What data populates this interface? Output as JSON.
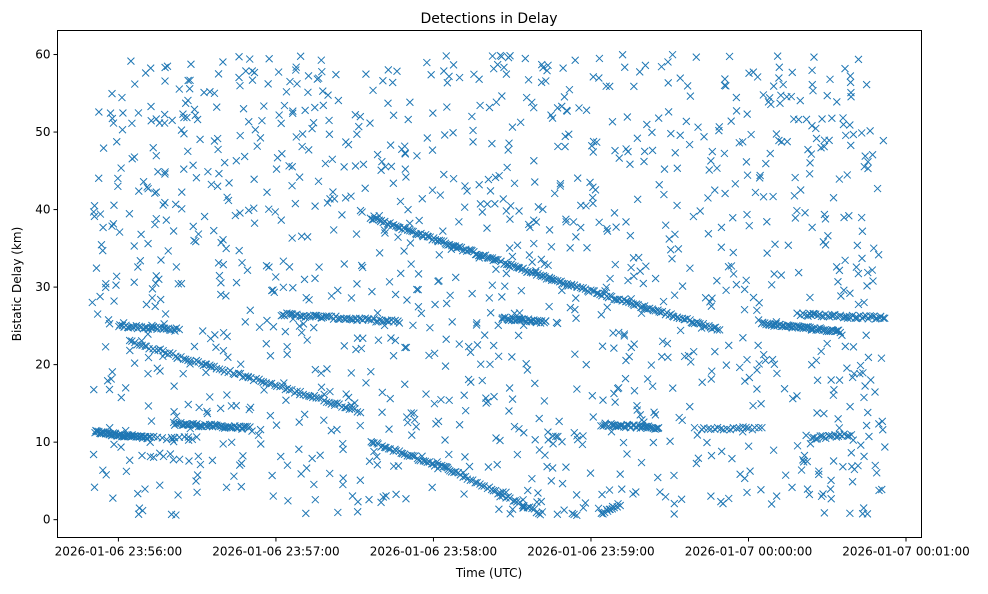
{
  "chart_data": {
    "type": "scatter",
    "title": "Detections in Delay",
    "xlabel": "Time (UTC)",
    "ylabel": "Bistatic Delay (km)",
    "x_units": "seconds relative to 2026-01-06 23:56:00 UTC",
    "xlim": [
      -23.2,
      305.9
    ],
    "ylim": [
      -2.3,
      63.1
    ],
    "grid": false,
    "marker": "x",
    "color": "#1f77b4",
    "x_ticks": [
      {
        "value": 0,
        "label": "2026-01-06 23:56:00"
      },
      {
        "value": 60,
        "label": "2026-01-06 23:57:00"
      },
      {
        "value": 120,
        "label": "2026-01-06 23:58:00"
      },
      {
        "value": 180,
        "label": "2026-01-06 23:59:00"
      },
      {
        "value": 240,
        "label": "2026-01-07 00:00:00"
      },
      {
        "value": 300,
        "label": "2026-01-07 00:01:00"
      }
    ],
    "y_ticks": [
      {
        "value": 0,
        "label": "0"
      },
      {
        "value": 10,
        "label": "10"
      },
      {
        "value": 20,
        "label": "20"
      },
      {
        "value": 30,
        "label": "30"
      },
      {
        "value": 40,
        "label": "40"
      },
      {
        "value": 50,
        "label": "50"
      },
      {
        "value": 60,
        "label": "60"
      }
    ],
    "tracks": [
      {
        "x": [
          -9,
          12
        ],
        "y": [
          11.3,
          10.5
        ],
        "n": 60
      },
      {
        "x": [
          21,
          50
        ],
        "y": [
          12.4,
          11.8
        ],
        "n": 55
      },
      {
        "x": [
          15,
          30
        ],
        "y": [
          10.5,
          10.5
        ],
        "n": 10
      },
      {
        "x": [
          0,
          23
        ],
        "y": [
          25.0,
          24.5
        ],
        "n": 35
      },
      {
        "x": [
          4,
          92
        ],
        "y": [
          23.0,
          14.0
        ],
        "n": 90
      },
      {
        "x": [
          62,
          107
        ],
        "y": [
          26.5,
          25.5
        ],
        "n": 60
      },
      {
        "x": [
          96,
          126
        ],
        "y": [
          10.0,
          6.5
        ],
        "n": 40
      },
      {
        "x": [
          126,
          161
        ],
        "y": [
          6.5,
          0.8
        ],
        "n": 40
      },
      {
        "x": [
          96,
          165
        ],
        "y": [
          39.0,
          31.0
        ],
        "n": 110
      },
      {
        "x": [
          165,
          229
        ],
        "y": [
          31.0,
          24.5
        ],
        "n": 90
      },
      {
        "x": [
          146,
          163
        ],
        "y": [
          26.0,
          25.5
        ],
        "n": 35
      },
      {
        "x": [
          184,
          206
        ],
        "y": [
          12.3,
          11.8
        ],
        "n": 40
      },
      {
        "x": [
          184,
          191
        ],
        "y": [
          0.8,
          2.0
        ],
        "n": 12
      },
      {
        "x": [
          222,
          245
        ],
        "y": [
          11.8,
          11.8
        ],
        "n": 20
      },
      {
        "x": [
          245,
          275
        ],
        "y": [
          25.3,
          24.3
        ],
        "n": 60
      },
      {
        "x": [
          260,
          292
        ],
        "y": [
          26.5,
          26.0
        ],
        "n": 45
      },
      {
        "x": [
          264,
          279
        ],
        "y": [
          10.5,
          11.0
        ],
        "n": 20
      }
    ],
    "noise": {
      "count": 1250,
      "x_range": [
        -10,
        292
      ],
      "y_range": [
        0.5,
        60
      ],
      "seed": 12345
    }
  }
}
